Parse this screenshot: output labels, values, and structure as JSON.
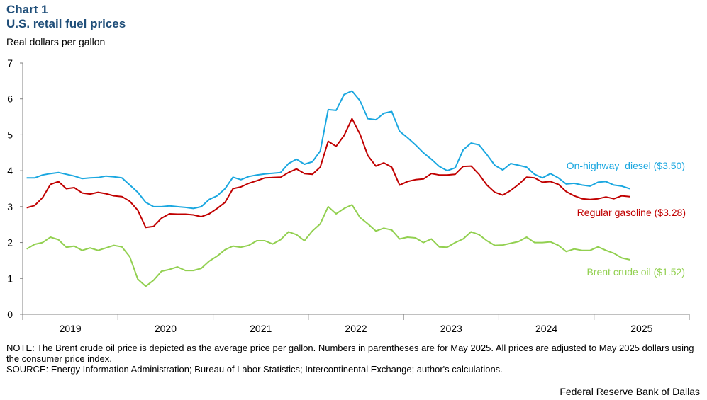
{
  "header": {
    "chart_label": "Chart 1",
    "title": "U.S. retail fuel prices",
    "y_axis_label": "Real dollars per gallon"
  },
  "footer": {
    "note": "NOTE: The Brent crude oil price is depicted as the average price per gallon. Numbers in parentheses are for May 2025. All prices are adjusted to May 2025 dollars using the consumer price index.",
    "source": "SOURCE: Energy Information Administration; Bureau of Labor Statistics; Intercontinental Exchange; author's calculations.",
    "credit": "Federal Reserve Bank of Dallas"
  },
  "colors": {
    "diesel": "#1aa7e0",
    "gasoline": "#c00000",
    "brent": "#92d050",
    "axis": "#808080",
    "title": "#1f4e79"
  },
  "chart_data": {
    "type": "line",
    "title": "U.S. retail fuel prices",
    "xlabel": "",
    "ylabel": "Real dollars per gallon",
    "ylim": [
      0,
      7
    ],
    "yticks": [
      0,
      1,
      2,
      3,
      4,
      5,
      6,
      7
    ],
    "grid": false,
    "x_start": "2019-01",
    "x_frequency": "monthly",
    "x_ticks": [
      "2019",
      "2020",
      "2021",
      "2022",
      "2023",
      "2024",
      "2025"
    ],
    "series": [
      {
        "name": "On-highway diesel",
        "label": "On-highway  diesel ($3.50)",
        "color_key": "diesel",
        "values": [
          3.8,
          3.8,
          3.88,
          3.92,
          3.95,
          3.9,
          3.85,
          3.78,
          3.8,
          3.81,
          3.85,
          3.83,
          3.8,
          3.6,
          3.4,
          3.12,
          3.0,
          3.0,
          3.02,
          3.0,
          2.98,
          2.95,
          3.0,
          3.2,
          3.3,
          3.5,
          3.82,
          3.75,
          3.84,
          3.88,
          3.91,
          3.93,
          3.95,
          4.2,
          4.32,
          4.18,
          4.25,
          4.55,
          5.7,
          5.68,
          6.12,
          6.22,
          5.95,
          5.45,
          5.42,
          5.6,
          5.65,
          5.1,
          4.92,
          4.72,
          4.5,
          4.32,
          4.12,
          4.0,
          4.08,
          4.58,
          4.77,
          4.72,
          4.45,
          4.15,
          4.02,
          4.2,
          4.15,
          4.1,
          3.9,
          3.8,
          3.92,
          3.8,
          3.63,
          3.65,
          3.6,
          3.57,
          3.68,
          3.7,
          3.6,
          3.57,
          3.5
        ]
      },
      {
        "name": "Regular gasoline",
        "label": "Regular gasoline ($3.28)",
        "color_key": "gasoline",
        "values": [
          2.97,
          3.03,
          3.25,
          3.62,
          3.7,
          3.5,
          3.53,
          3.38,
          3.35,
          3.4,
          3.36,
          3.3,
          3.28,
          3.15,
          2.9,
          2.42,
          2.45,
          2.68,
          2.8,
          2.79,
          2.79,
          2.77,
          2.72,
          2.8,
          2.95,
          3.12,
          3.5,
          3.55,
          3.65,
          3.72,
          3.8,
          3.81,
          3.82,
          3.95,
          4.05,
          3.92,
          3.9,
          4.1,
          4.82,
          4.68,
          4.98,
          5.45,
          5.02,
          4.42,
          4.13,
          4.22,
          4.1,
          3.6,
          3.7,
          3.75,
          3.77,
          3.92,
          3.88,
          3.88,
          3.9,
          4.12,
          4.13,
          3.9,
          3.6,
          3.4,
          3.32,
          3.45,
          3.62,
          3.82,
          3.8,
          3.68,
          3.7,
          3.62,
          3.42,
          3.3,
          3.22,
          3.2,
          3.22,
          3.27,
          3.22,
          3.3,
          3.28
        ]
      },
      {
        "name": "Brent crude oil",
        "label": "Brent crude oil ($1.52)",
        "color_key": "brent",
        "values": [
          1.82,
          1.95,
          2.0,
          2.15,
          2.08,
          1.87,
          1.9,
          1.78,
          1.85,
          1.78,
          1.85,
          1.92,
          1.88,
          1.6,
          0.98,
          0.78,
          0.95,
          1.2,
          1.25,
          1.32,
          1.22,
          1.22,
          1.28,
          1.48,
          1.62,
          1.8,
          1.9,
          1.87,
          1.92,
          2.05,
          2.05,
          1.96,
          2.08,
          2.3,
          2.22,
          2.05,
          2.32,
          2.52,
          3.0,
          2.8,
          2.95,
          3.05,
          2.7,
          2.52,
          2.32,
          2.4,
          2.35,
          2.1,
          2.15,
          2.13,
          2.0,
          2.1,
          1.88,
          1.87,
          2.0,
          2.1,
          2.3,
          2.22,
          2.05,
          1.92,
          1.93,
          1.98,
          2.03,
          2.15,
          2.0,
          2.0,
          2.02,
          1.92,
          1.75,
          1.82,
          1.78,
          1.78,
          1.88,
          1.78,
          1.7,
          1.57,
          1.52
        ]
      }
    ]
  }
}
